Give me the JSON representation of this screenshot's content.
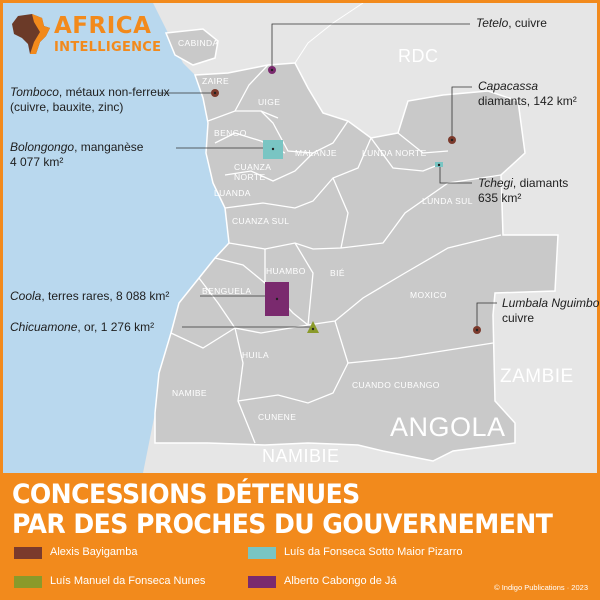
{
  "brand": {
    "line1": "AFRICA",
    "line2": "INTELLIGENCE"
  },
  "countries": {
    "drc": "RDC",
    "zambia": "ZAMBIE",
    "angola": "ANGOLA",
    "namibia": "NAMIBIE"
  },
  "regions": {
    "cabinda": "CABINDA",
    "zaire": "ZAIRE",
    "uige": "UIGE",
    "bengo": "BENGO",
    "malanje": "MALANJE",
    "lunda_norte": "LUNDA NORTE",
    "cuanza_norte": "CUANZA NORTE",
    "luanda": "LUANDA",
    "lunda_sul": "LUNDA SUL",
    "cuanza_sul": "CUANZA SUL",
    "huambo": "HUAMBO",
    "bie": "BIÉ",
    "benguela": "BENGUELA",
    "moxico": "MOXICO",
    "huila": "HUILA",
    "namibe": "NAMIBE",
    "cuando_cubango": "CUANDO CUBANGO",
    "cunene": "CUNENE"
  },
  "concessions": {
    "tetelo": {
      "name": "Tetelo",
      "detail": ", cuivre",
      "color": "#7a2a6e"
    },
    "tomboco": {
      "name": "Tomboco",
      "detail": ", métaux non-ferreux",
      "detail2": "(cuivre, bauxite, zinc)",
      "color": "#7b3a2c"
    },
    "capacassa": {
      "name": "Capacassa",
      "detail": "diamants, 142 km²",
      "color": "#7b3a2c"
    },
    "bolongongo": {
      "name": "Bolongongo",
      "detail": ", manganèse",
      "detail2": "4 077 km²",
      "color": "#79c5c3"
    },
    "tchegi": {
      "name": "Tchegi",
      "detail": ", diamants",
      "detail2": "635 km²",
      "color": "#79c5c3"
    },
    "coola": {
      "name": "Coola",
      "detail": ", terres rares, 8 088 km²",
      "color": "#7a2a6e"
    },
    "chicuamone": {
      "name": "Chicuamone",
      "detail": ", or, 1 276 km²",
      "color": "#8a9a2a"
    },
    "lumbala": {
      "name": "Lumbala Nguimbo",
      "detail": "cuivre",
      "color": "#7b3a2c"
    }
  },
  "title": {
    "line1": "CONCESSIONS DÉTENUES",
    "line2": "PAR DES PROCHES DU GOUVERNEMENT"
  },
  "legend": [
    {
      "label": "Alexis Bayigamba",
      "color": "#7b3a2c"
    },
    {
      "label": "Luís da Fonseca Sotto Maior Pizarro",
      "color": "#79c5c3"
    },
    {
      "label": "Luís Manuel da Fonseca Nunes",
      "color": "#8a9a2a"
    },
    {
      "label": "Alberto Cabongo de Já",
      "color": "#7a2a6e"
    }
  ],
  "credit": "© Indigo Publications · 2023",
  "colors": {
    "accent": "#f28a1c",
    "sea": "#b9d8ee",
    "land": "#c9c9c9",
    "neighbor": "#e6e6e6",
    "border": "#ffffff"
  }
}
